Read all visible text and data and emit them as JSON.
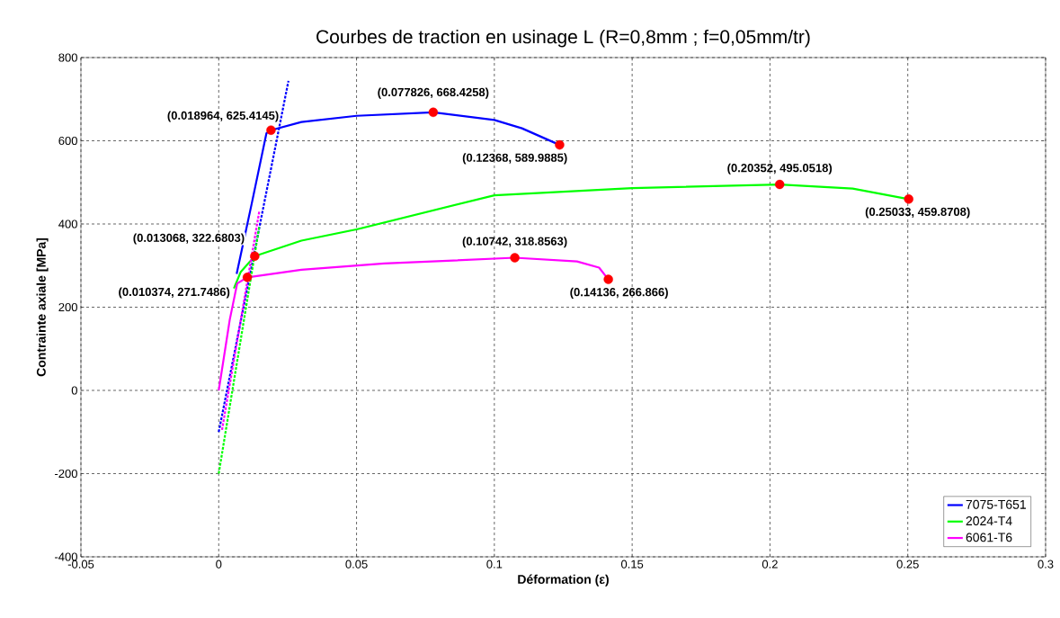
{
  "chart_data": {
    "type": "line",
    "title": "Courbes de traction en usinage L (R=0,8mm ; f=0,05mm/tr)",
    "xlabel": "Déformation (ε)",
    "ylabel": "Contrainte axiale [MPa]",
    "xlim": [
      -0.05,
      0.3
    ],
    "ylim": [
      -400,
      800
    ],
    "xticks": [
      -0.05,
      0,
      0.05,
      0.1,
      0.15,
      0.2,
      0.25,
      0.3
    ],
    "yticks": [
      -400,
      -200,
      0,
      200,
      400,
      600,
      800
    ],
    "grid": true,
    "legend": "bottom right",
    "series": [
      {
        "name": "7075-T651",
        "color": "#0000ff",
        "line_style": "solid",
        "marker": "none",
        "x": [
          0.0065,
          0.012,
          0.0173,
          0.018964,
          0.03,
          0.05,
          0.077826,
          0.1,
          0.11,
          0.12368
        ],
        "values": [
          280,
          450,
          618,
          625.4145,
          645,
          660,
          668.4258,
          650,
          630,
          589.9885
        ]
      },
      {
        "name": "2024-T4",
        "color": "#00ff00",
        "line_style": "solid",
        "marker": "none",
        "x": [
          0.0055,
          0.008,
          0.013068,
          0.03,
          0.05,
          0.1,
          0.15,
          0.20352,
          0.23,
          0.25033
        ],
        "values": [
          245,
          285,
          322.6803,
          360,
          387,
          469,
          486,
          495.0518,
          485,
          459.8708
        ]
      },
      {
        "name": "6061-T6",
        "color": "#ff00ff",
        "line_style": "solid",
        "marker": "none",
        "x": [
          0,
          0.004,
          0.0067,
          0.010374,
          0.03,
          0.06,
          0.10742,
          0.13,
          0.138,
          0.14136
        ],
        "values": [
          0,
          170,
          257,
          271.7486,
          290,
          305,
          318.8563,
          310,
          295,
          266.866
        ]
      },
      {
        "color": "#0000ff",
        "line_style": "dashed",
        "marker": "none",
        "x": [
          0,
          0.0253
        ],
        "values": [
          -100,
          744
        ]
      },
      {
        "color": "#00ff00",
        "line_style": "dashed",
        "marker": "none",
        "x": [
          0,
          0.0147
        ],
        "values": [
          -200,
          393
        ]
      },
      {
        "color": "#ff00ff",
        "line_style": "dashed",
        "marker": "none",
        "x": [
          0.0012,
          0.0147
        ],
        "values": [
          -95,
          430
        ]
      },
      {
        "type": "scatter",
        "color": "#ff0000",
        "marker": "circle",
        "x": [
          0.018964,
          0.077826,
          0.12368,
          0.013068,
          0.20352,
          0.25033,
          0.010374,
          0.10742,
          0.14136
        ],
        "values": [
          625.4145,
          668.4258,
          589.9885,
          322.6803,
          495.0518,
          459.8708,
          271.7486,
          318.8563,
          266.866
        ]
      }
    ],
    "annotations": [
      {
        "text": "(0.018964, 625.4145)",
        "x": 0.018964,
        "y": 625.4145
      },
      {
        "text": "(0.077826, 668.4258)",
        "x": 0.077826,
        "y": 668.4258
      },
      {
        "text": "(0.12368, 589.9885)",
        "x": 0.12368,
        "y": 589.9885
      },
      {
        "text": "(0.013068, 322.6803)",
        "x": 0.013068,
        "y": 322.6803
      },
      {
        "text": "(0.20352, 495.0518)",
        "x": 0.20352,
        "y": 495.0518
      },
      {
        "text": "(0.25033, 459.8708)",
        "x": 0.25033,
        "y": 459.8708
      },
      {
        "text": "(0.010374, 271.7486)",
        "x": 0.010374,
        "y": 271.7486
      },
      {
        "text": "(0.10742, 318.8563)",
        "x": 0.10742,
        "y": 318.8563
      },
      {
        "text": "(0.14136, 266.866)",
        "x": 0.14136,
        "y": 266.866
      }
    ]
  }
}
